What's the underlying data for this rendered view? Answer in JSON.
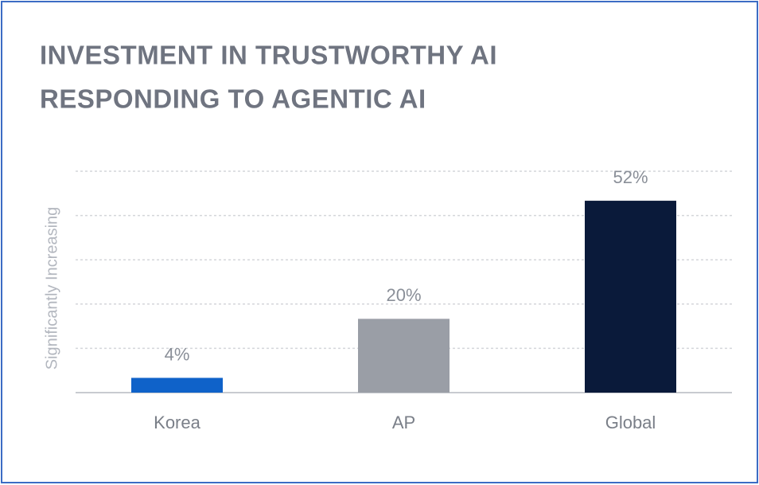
{
  "chart_data": {
    "type": "bar",
    "title": [
      "INVESTMENT IN TRUSTWORTHY AI",
      "RESPONDING TO AGENTIC AI"
    ],
    "y_label": "Significantly Increasing",
    "categories": [
      "Korea",
      "AP",
      "Global"
    ],
    "values": [
      4,
      20,
      52
    ],
    "value_labels": [
      "4%",
      "20%",
      "52%"
    ],
    "colors": [
      "#0f62c9",
      "#9a9ea6",
      "#0a1a3a"
    ],
    "ylim": [
      0,
      60
    ],
    "yticks": [
      0,
      12,
      24,
      36,
      48,
      60
    ],
    "grid": true
  }
}
